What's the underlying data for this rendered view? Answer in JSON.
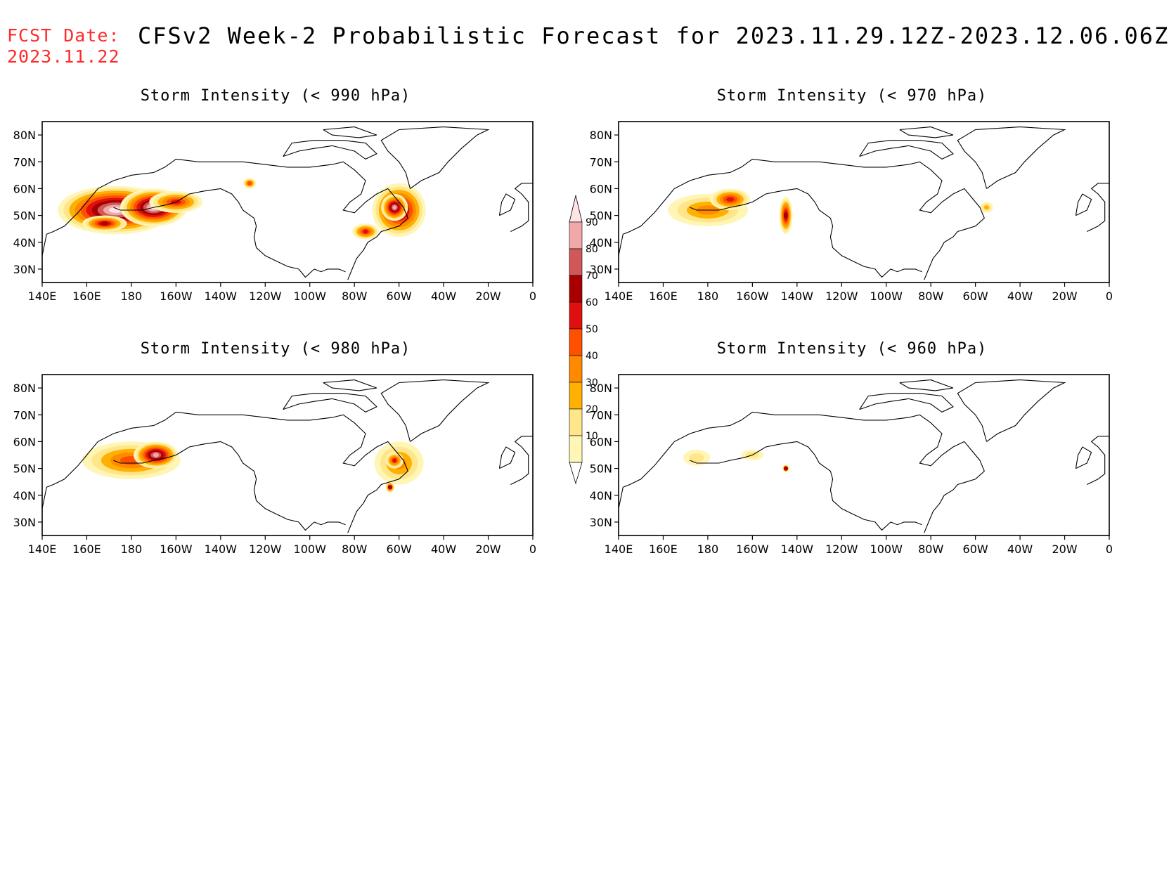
{
  "header": {
    "fcst_label": "FCST Date:",
    "fcst_date": "2023.11.22",
    "title": "CFSv2 Week-2 Probabilistic Forecast for 2023.11.29.12Z-2023.12.06.06Z"
  },
  "axes": {
    "lat_ticks": [
      "80N",
      "70N",
      "60N",
      "50N",
      "40N",
      "30N"
    ],
    "lon_ticks": [
      "140E",
      "160E",
      "180",
      "160W",
      "140W",
      "120W",
      "100W",
      "80W",
      "60W",
      "40W",
      "20W",
      "0"
    ],
    "lon_range": [
      140,
      360
    ],
    "lat_range": [
      25,
      85
    ]
  },
  "colorbar": {
    "levels": [
      "10",
      "20",
      "30",
      "40",
      "50",
      "60",
      "70",
      "80",
      "90"
    ],
    "colors": [
      "#fff5b5",
      "#ffe68a",
      "#ffb000",
      "#ff8a00",
      "#ff5000",
      "#e01010",
      "#a80000",
      "#d05858",
      "#f0a8a8",
      "#ffe4e6"
    ]
  },
  "panels": [
    {
      "id": "p990",
      "title": "Storm Intensity (< 990 hPa)",
      "blobs": [
        {
          "lon": 173,
          "lat": 52,
          "rx": 26,
          "ry": 9,
          "level": 9
        },
        {
          "lon": 190,
          "lat": 53,
          "rx": 15,
          "ry": 7,
          "level": 9
        },
        {
          "lon": 168,
          "lat": 47,
          "rx": 10,
          "ry": 3,
          "level": 6
        },
        {
          "lon": 200,
          "lat": 55,
          "rx": 12,
          "ry": 4,
          "level": 5
        },
        {
          "lon": 300,
          "lat": 52,
          "rx": 12,
          "ry": 10,
          "level": 7
        },
        {
          "lon": 298,
          "lat": 53,
          "rx": 6,
          "ry": 5,
          "level": 8
        },
        {
          "lon": 285,
          "lat": 44,
          "rx": 6,
          "ry": 3,
          "level": 5
        },
        {
          "lon": 233,
          "lat": 62,
          "rx": 3,
          "ry": 2,
          "level": 4
        }
      ]
    },
    {
      "id": "p970",
      "title": "Storm Intensity (< 970 hPa)",
      "blobs": [
        {
          "lon": 180,
          "lat": 52,
          "rx": 18,
          "ry": 6,
          "level": 3
        },
        {
          "lon": 190,
          "lat": 56,
          "rx": 9,
          "ry": 4,
          "level": 5
        },
        {
          "lon": 215,
          "lat": 50,
          "rx": 3,
          "ry": 7,
          "level": 6
        },
        {
          "lon": 305,
          "lat": 53,
          "rx": 3,
          "ry": 2,
          "level": 2
        }
      ]
    },
    {
      "id": "p980",
      "title": "Storm Intensity (< 980 hPa)",
      "blobs": [
        {
          "lon": 180,
          "lat": 53,
          "rx": 22,
          "ry": 7,
          "level": 4
        },
        {
          "lon": 191,
          "lat": 55,
          "rx": 10,
          "ry": 5,
          "level": 8
        },
        {
          "lon": 300,
          "lat": 52,
          "rx": 11,
          "ry": 8,
          "level": 3
        },
        {
          "lon": 298,
          "lat": 53,
          "rx": 4,
          "ry": 3,
          "level": 5
        },
        {
          "lon": 296,
          "lat": 43,
          "rx": 2,
          "ry": 2,
          "level": 6
        }
      ]
    },
    {
      "id": "p960",
      "title": "Storm Intensity (< 960 hPa)",
      "blobs": [
        {
          "lon": 175,
          "lat": 54,
          "rx": 6,
          "ry": 3,
          "level": 1
        },
        {
          "lon": 200,
          "lat": 55,
          "rx": 5,
          "ry": 2,
          "level": 1
        },
        {
          "lon": 215,
          "lat": 50,
          "rx": 1.5,
          "ry": 1.5,
          "level": 6
        }
      ]
    }
  ]
}
